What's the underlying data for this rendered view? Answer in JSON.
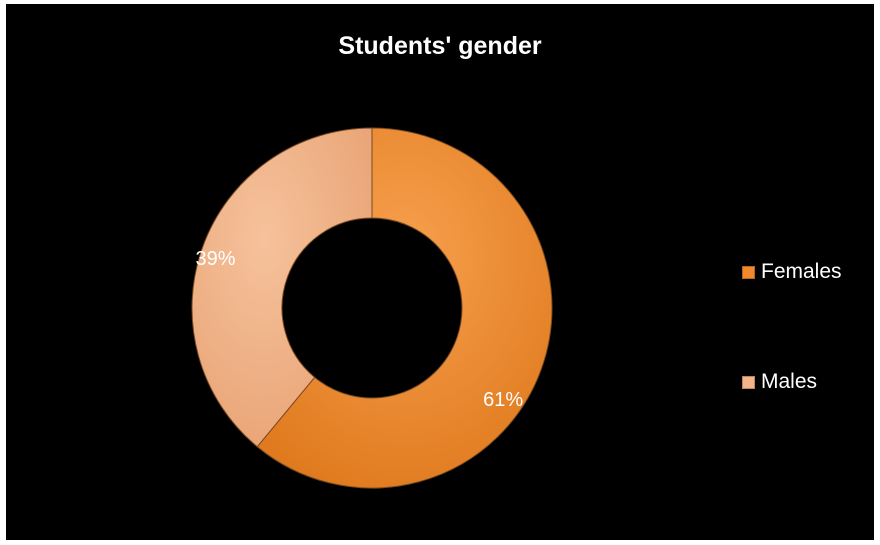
{
  "chart_data": {
    "type": "pie",
    "variant": "doughnut",
    "title": "Students' gender",
    "categories": [
      "Females",
      "Males"
    ],
    "values": [
      61,
      39
    ],
    "data_labels": [
      "61%",
      "39%"
    ],
    "colors": [
      "#F0882E",
      "#F2B488"
    ],
    "legend": {
      "position": "right",
      "entries": [
        "Females",
        "Males"
      ]
    },
    "background": "#000000"
  }
}
